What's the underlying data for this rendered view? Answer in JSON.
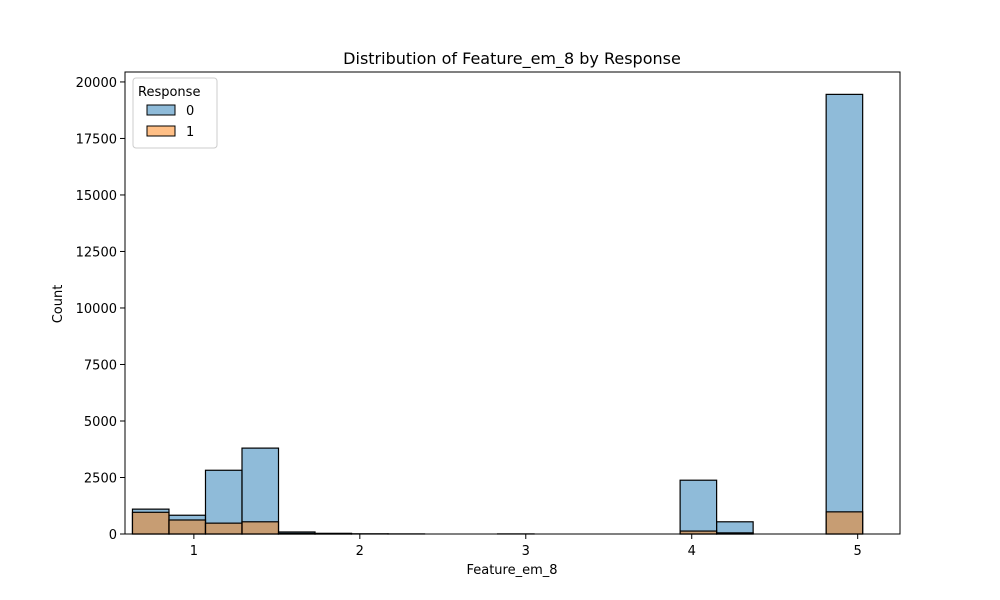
{
  "chart_data": {
    "type": "bar",
    "title": "Distribution of Feature_em_8 by Response",
    "xlabel": "Feature_em_8",
    "ylabel": "Count",
    "xlim": [
      0.585,
      5.255
    ],
    "ylim": [
      0,
      20440
    ],
    "x_ticks": [
      1,
      2,
      3,
      4,
      5
    ],
    "y_ticks": [
      0,
      2500,
      5000,
      7500,
      10000,
      12500,
      15000,
      17500,
      20000
    ],
    "y_tick_labels": [
      "0",
      "2500",
      "5000",
      "7500",
      "10000",
      "12500",
      "15000",
      "17500",
      "20000"
    ],
    "bin_width": 0.22,
    "bin_starts": [
      0.63,
      0.85,
      1.07,
      1.29,
      1.51,
      1.73,
      1.95,
      2.17,
      2.39,
      2.61,
      2.83,
      3.05,
      3.27,
      3.49,
      3.71,
      3.93,
      4.15,
      4.37,
      4.59,
      4.81
    ],
    "grid": false,
    "legend": {
      "title": "Response",
      "position": "top-left"
    },
    "series": [
      {
        "name": "0",
        "color": "#1f77b4",
        "values": [
          1100,
          830,
          2820,
          3800,
          90,
          30,
          10,
          5,
          0,
          0,
          5,
          0,
          0,
          0,
          0,
          2380,
          540,
          0,
          0,
          19450
        ]
      },
      {
        "name": "1",
        "color": "#ff7f0e",
        "values": [
          960,
          620,
          480,
          540,
          30,
          10,
          0,
          0,
          0,
          0,
          0,
          0,
          0,
          0,
          0,
          130,
          50,
          0,
          0,
          980
        ]
      }
    ]
  }
}
